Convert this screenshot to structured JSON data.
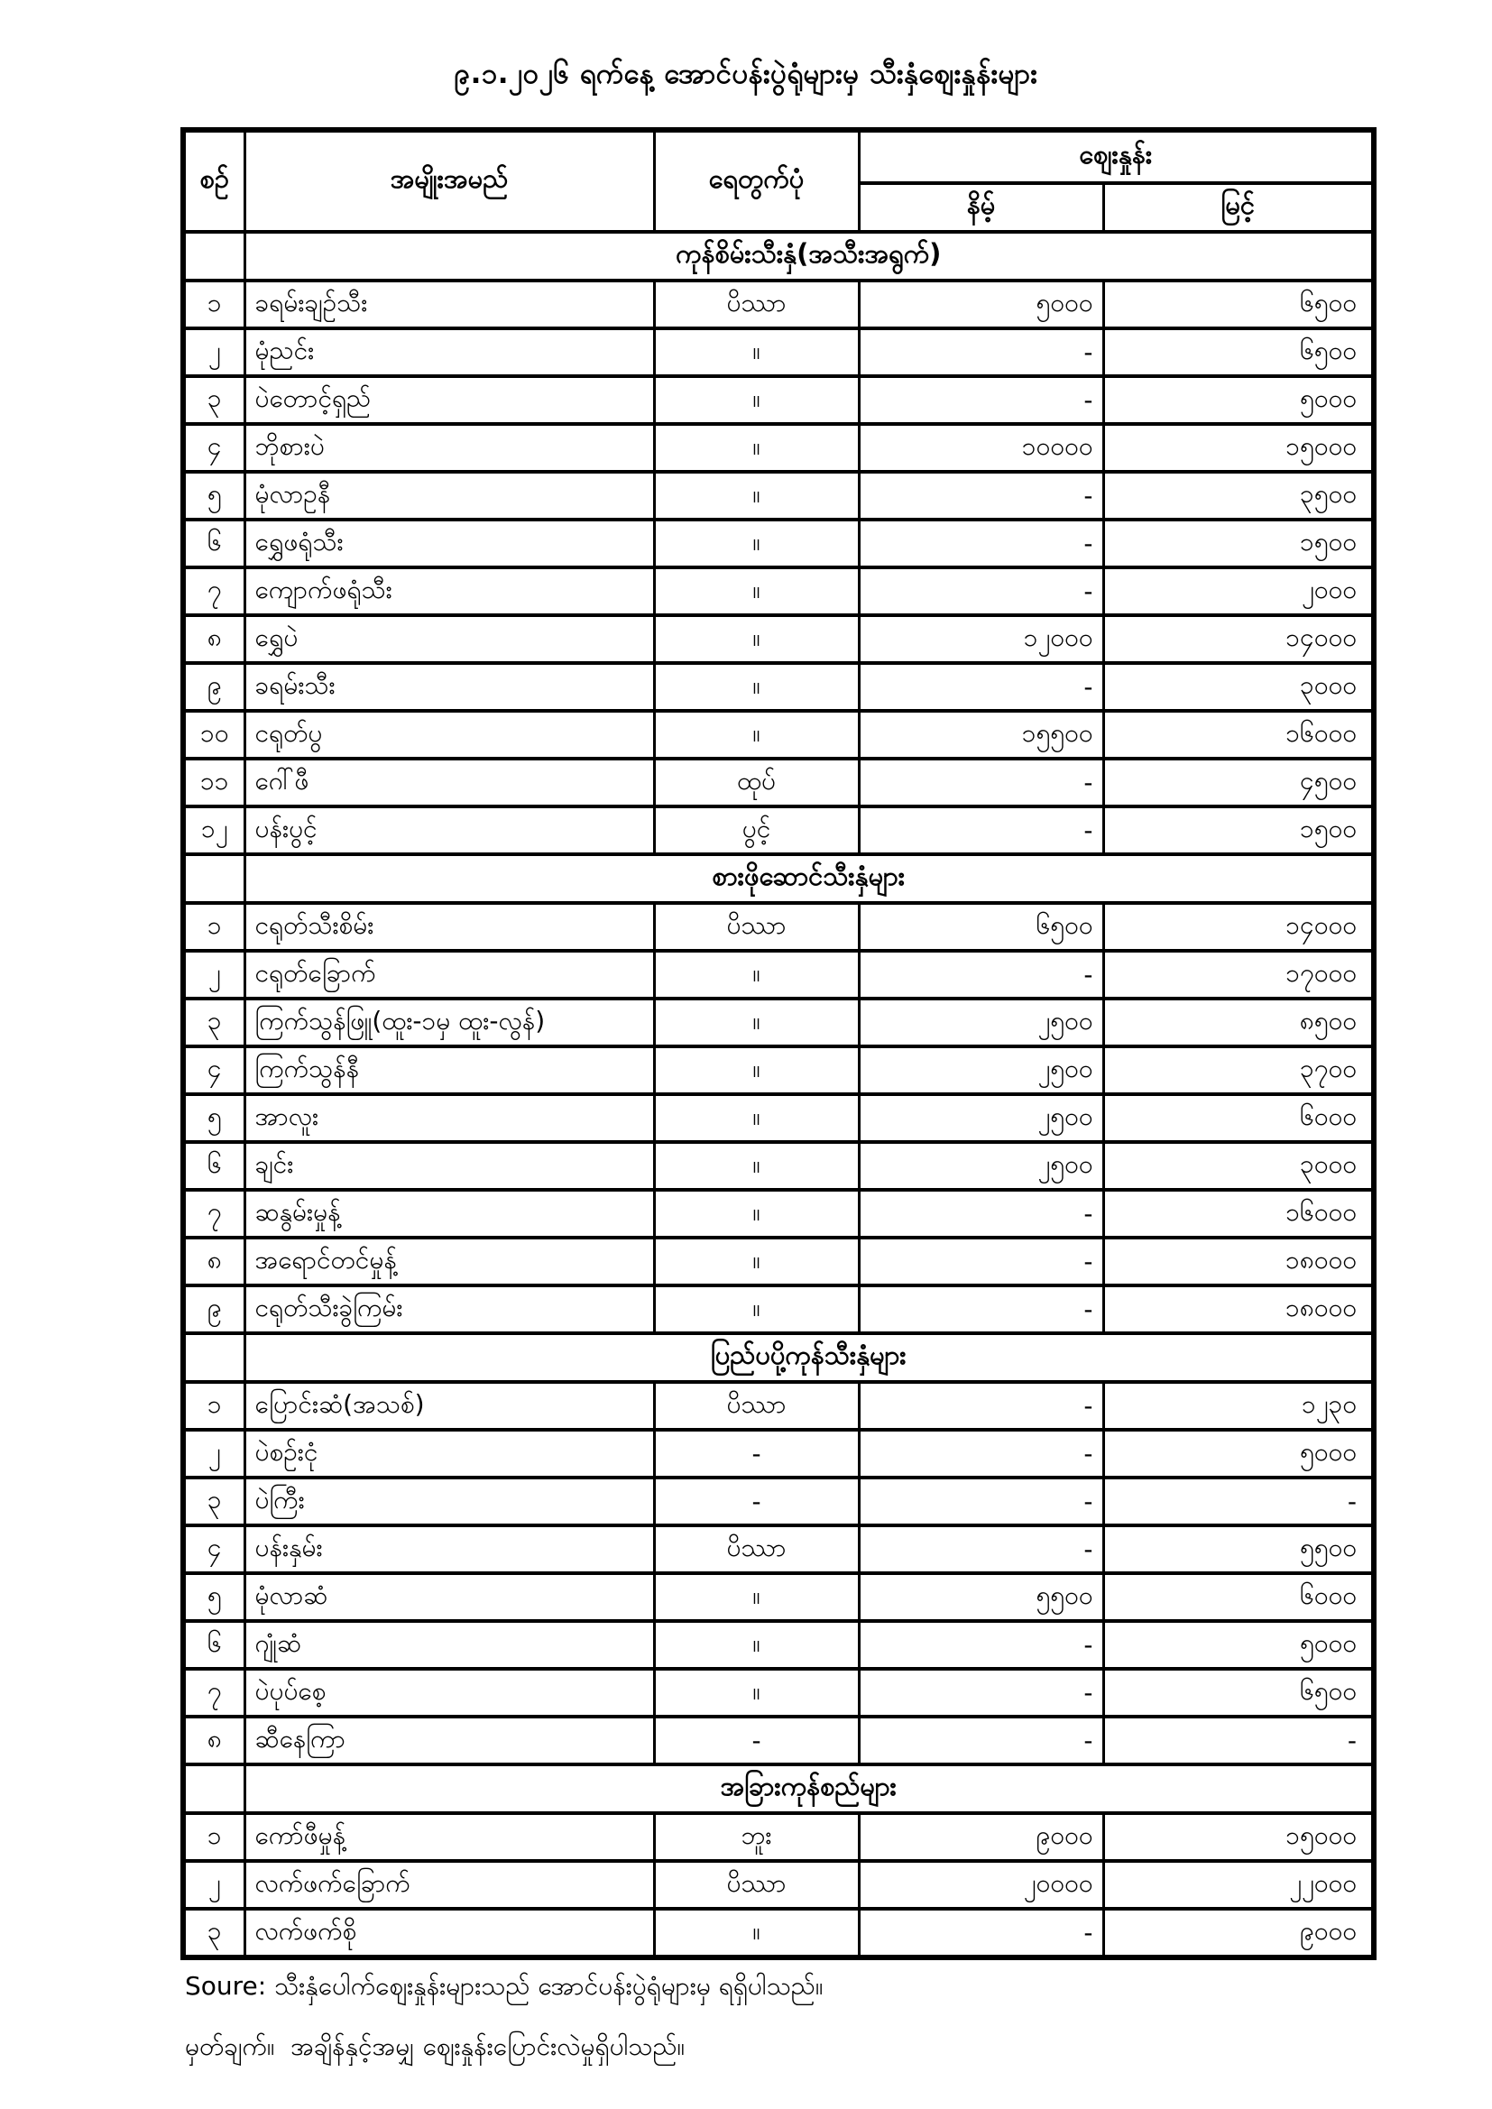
{
  "title": "၉.၁.၂၀၂၆ ရက်နေ့ အောင်ပန်းပွဲရုံများမှ သီးနှံဈေးနှုန်းများ",
  "table": {
    "columns": {
      "no": "စဉ်",
      "name": "အမျိုးအမည်",
      "unit": "ရေတွက်ပုံ",
      "price_group": "ဈေးနှုန်း",
      "min": "နိမ့်",
      "max": "မြင့်"
    },
    "sections": [
      {
        "title": "ကုန်စိမ်းသီးနှံ(အသီးအရွက်)",
        "rows": [
          {
            "no": "၁",
            "name": "ခရမ်းချဉ်သီး",
            "unit": "ပိဿာ",
            "min": "၅၀၀၀",
            "max": "၆၅၀၀"
          },
          {
            "no": "၂",
            "name": "မုံညင်း",
            "unit": "။",
            "min": "-",
            "max": "၆၅၀၀"
          },
          {
            "no": "၃",
            "name": "ပဲတောင့်ရှည်",
            "unit": "။",
            "min": "-",
            "max": "၅၀၀၀"
          },
          {
            "no": "၄",
            "name": "ဘိုစားပဲ",
            "unit": "။",
            "min": "၁၀၀၀၀",
            "max": "၁၅၀၀၀"
          },
          {
            "no": "၅",
            "name": "မုံလာဥနီ",
            "unit": "။",
            "min": "-",
            "max": "၃၅၀၀"
          },
          {
            "no": "၆",
            "name": "ရွှေဖရုံသီး",
            "unit": "။",
            "min": "-",
            "max": "၁၅၀၀"
          },
          {
            "no": "၇",
            "name": "ကျောက်ဖရုံသီး",
            "unit": "။",
            "min": "-",
            "max": "၂၀၀၀"
          },
          {
            "no": "၈",
            "name": "ရွှေပဲ",
            "unit": "။",
            "min": "၁၂၀၀၀",
            "max": "၁၄၀၀၀"
          },
          {
            "no": "၉",
            "name": "ခရမ်းသီး",
            "unit": "။",
            "min": "-",
            "max": "၃၀၀၀"
          },
          {
            "no": "၁၀",
            "name": "ငရုတ်ပွ",
            "unit": "။",
            "min": "၁၅၅၀၀",
            "max": "၁၆၀၀၀"
          },
          {
            "no": "၁၁",
            "name": "ဂေါ်ဖီ",
            "unit": "ထုပ်",
            "min": "-",
            "max": "၄၅၀၀"
          },
          {
            "no": "၁၂",
            "name": "ပန်းပွင့်",
            "unit": "ပွင့်",
            "min": "-",
            "max": "၁၅၀၀"
          }
        ]
      },
      {
        "title": "စားဖိုဆောင်သီးနှံများ",
        "rows": [
          {
            "no": "၁",
            "name": "ငရုတ်သီးစိမ်း",
            "unit": "ပိဿာ",
            "min": "၆၅၀၀",
            "max": "၁၄၀၀၀"
          },
          {
            "no": "၂",
            "name": "ငရုတ်ခြောက်",
            "unit": "။",
            "min": "-",
            "max": "၁၇၀၀၀"
          },
          {
            "no": "၃",
            "name": "ကြက်သွန်ဖြူ(ထူး-၁မှ ထူး-လွန်)",
            "unit": "။",
            "min": "၂၅၀၀",
            "max": "၈၅၀၀"
          },
          {
            "no": "၄",
            "name": "ကြက်သွန်နီ",
            "unit": "။",
            "min": "၂၅၀၀",
            "max": "၃၇၀၀"
          },
          {
            "no": "၅",
            "name": "အာလူး",
            "unit": "။",
            "min": "၂၅၀၀",
            "max": "၆၀၀၀"
          },
          {
            "no": "၆",
            "name": "ချင်း",
            "unit": "။",
            "min": "၂၅၀၀",
            "max": "၃၀၀၀"
          },
          {
            "no": "၇",
            "name": "ဆနွမ်းမှုန့်",
            "unit": "။",
            "min": "-",
            "max": "၁၆၀၀၀"
          },
          {
            "no": "၈",
            "name": "အရောင်တင်မှုန့်",
            "unit": "။",
            "min": "-",
            "max": "၁၈၀၀၀"
          },
          {
            "no": "၉",
            "name": "ငရုတ်သီးခွဲကြမ်း",
            "unit": "။",
            "min": "-",
            "max": "၁၈၀၀၀"
          }
        ]
      },
      {
        "title": "ပြည်ပပို့ကုန်သီးနှံများ",
        "rows": [
          {
            "no": "၁",
            "name": "ပြောင်းဆံ(အသစ်)",
            "unit": "ပိဿာ",
            "min": "-",
            "max": "၁၂၃၀"
          },
          {
            "no": "၂",
            "name": "ပဲစဉ်းငုံ",
            "unit": "-",
            "min": "-",
            "max": "၅၀၀၀"
          },
          {
            "no": "၃",
            "name": "ပဲကြီး",
            "unit": "-",
            "min": "-",
            "max": "-"
          },
          {
            "no": "၄",
            "name": "ပန်းနှမ်း",
            "unit": "ပိဿာ",
            "min": "-",
            "max": "၅၅၀၀"
          },
          {
            "no": "၅",
            "name": "မုံလာဆံ",
            "unit": "။",
            "min": "၅၅၀၀",
            "max": "၆၀၀၀"
          },
          {
            "no": "၆",
            "name": "ဂျုံဆံ",
            "unit": "။",
            "min": "-",
            "max": "၅၀၀၀"
          },
          {
            "no": "၇",
            "name": "ပဲပုပ်စေ့",
            "unit": "။",
            "min": "-",
            "max": "၆၅၀၀"
          },
          {
            "no": "၈",
            "name": "ဆီနေကြာ",
            "unit": "-",
            "min": "-",
            "max": "-"
          }
        ]
      },
      {
        "title": "အခြားကုန်စည်များ",
        "rows": [
          {
            "no": "၁",
            "name": "ကော်ဖီမှုန့်",
            "unit": "ဘူး",
            "min": "၉၀၀၀",
            "max": "၁၅၀၀၀"
          },
          {
            "no": "၂",
            "name": "လက်ဖက်ခြောက်",
            "unit": "ပိဿာ",
            "min": "၂၀၀၀၀",
            "max": "၂၂၀၀၀"
          },
          {
            "no": "၃",
            "name": "လက်ဖက်စို",
            "unit": "။",
            "min": "-",
            "max": "၉၀၀၀"
          }
        ]
      }
    ]
  },
  "footer": {
    "source": "Soure: သီးနှံပေါက်ဈေးနှုန်းများသည် အောင်ပန်းပွဲရုံများမှ ရရှိပါသည်။",
    "note": "မှတ်ချက်။  အချိန်နှင့်အမျှ ဈေးနှုန်းပြောင်းလဲမှုရှိပါသည်။"
  },
  "colors": {
    "text": "#000000",
    "border": "#000000",
    "background": "#ffffff"
  }
}
